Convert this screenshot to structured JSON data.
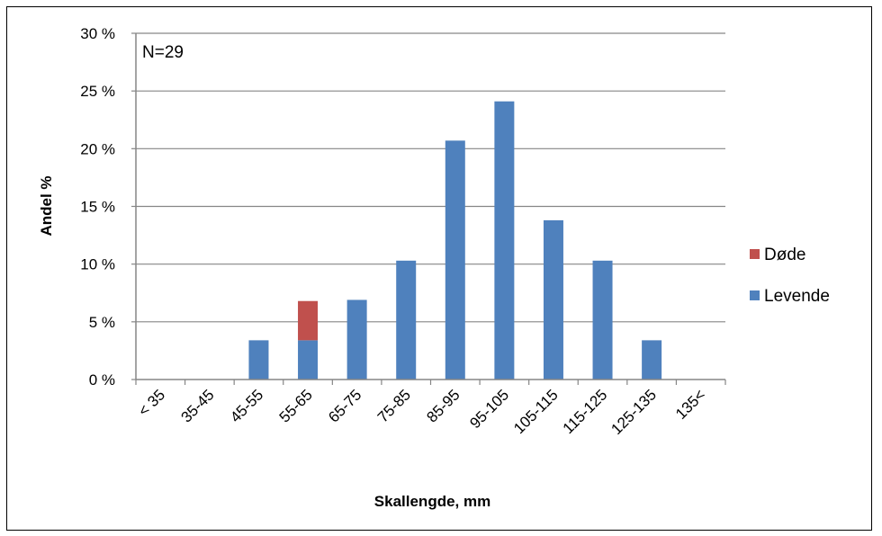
{
  "chart_data": {
    "type": "bar",
    "stacked": true,
    "title": "",
    "xlabel": "Skallengde, mm",
    "ylabel": "Andel %",
    "ylim": [
      0,
      30
    ],
    "y_ticks": [
      "0 %",
      "5 %",
      "10 %",
      "15 %",
      "20 %",
      "25 %",
      "30 %"
    ],
    "grid": "horizontal",
    "legend_position": "right",
    "annotation": "N=29",
    "categories": [
      "< 35",
      "35-45",
      "45-55",
      "55-65",
      "65-75",
      "75-85",
      "85-95",
      "95-105",
      "105-115",
      "115-125",
      "125-135",
      "135<"
    ],
    "series": [
      {
        "name": "Levende",
        "color": "#4f81bd",
        "values": [
          0,
          0,
          3.4,
          3.4,
          6.9,
          10.3,
          20.7,
          24.1,
          13.8,
          10.3,
          3.4,
          0
        ]
      },
      {
        "name": "Døde",
        "color": "#c0504d",
        "values": [
          0,
          0,
          0,
          3.4,
          0,
          0,
          0,
          0,
          0,
          0,
          0,
          0
        ]
      }
    ],
    "legend_order": [
      "Døde",
      "Levende"
    ]
  }
}
